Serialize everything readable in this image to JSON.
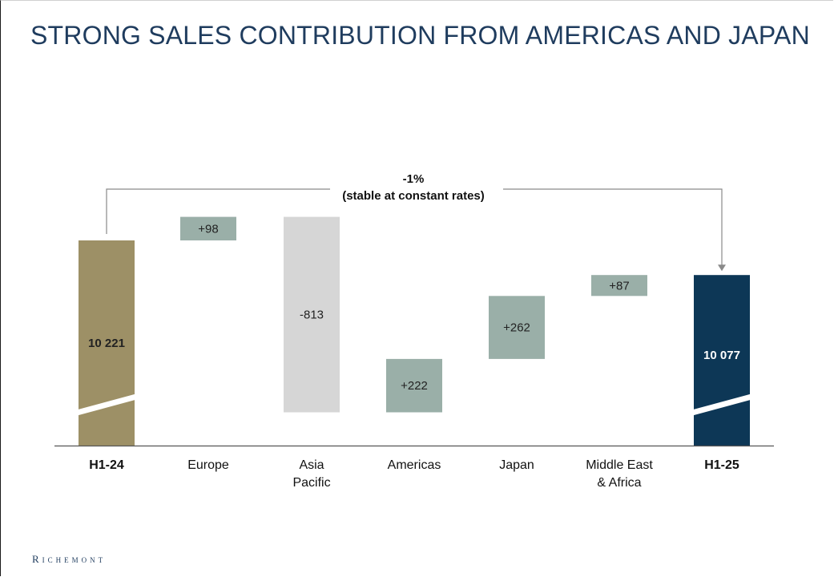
{
  "title": "STRONG SALES CONTRIBUTION FROM AMERICAS AND JAPAN",
  "brand": "Richemont",
  "colors": {
    "title": "#1f3c5e",
    "start_bar": "#9d9066",
    "end_bar": "#0d3756",
    "increase": "#9aafa8",
    "decrease": "#d6d6d6",
    "bracket": "#8a8a8a"
  },
  "chart_data": {
    "type": "bar",
    "subtype": "waterfall",
    "categories": [
      "H1-24",
      "Europe",
      "Asia\nPacific",
      "Americas",
      "Japan",
      "Middle East\n& Africa",
      "H1-25"
    ],
    "values": [
      10221,
      98,
      -813,
      222,
      262,
      87,
      10077
    ],
    "bar_roles": [
      "total",
      "delta",
      "delta",
      "delta",
      "delta",
      "delta",
      "total"
    ],
    "labels": [
      "10 221",
      "+98",
      "-813",
      "+222",
      "+262",
      "+87",
      "10 077"
    ],
    "bold_categories": [
      "H1-24",
      "H1-25"
    ],
    "axis_break": true,
    "y_axis_shown": false,
    "annotation": {
      "line1": "-1%",
      "line2": "(stable at constant rates)",
      "from": "H1-24",
      "to": "H1-25"
    }
  }
}
